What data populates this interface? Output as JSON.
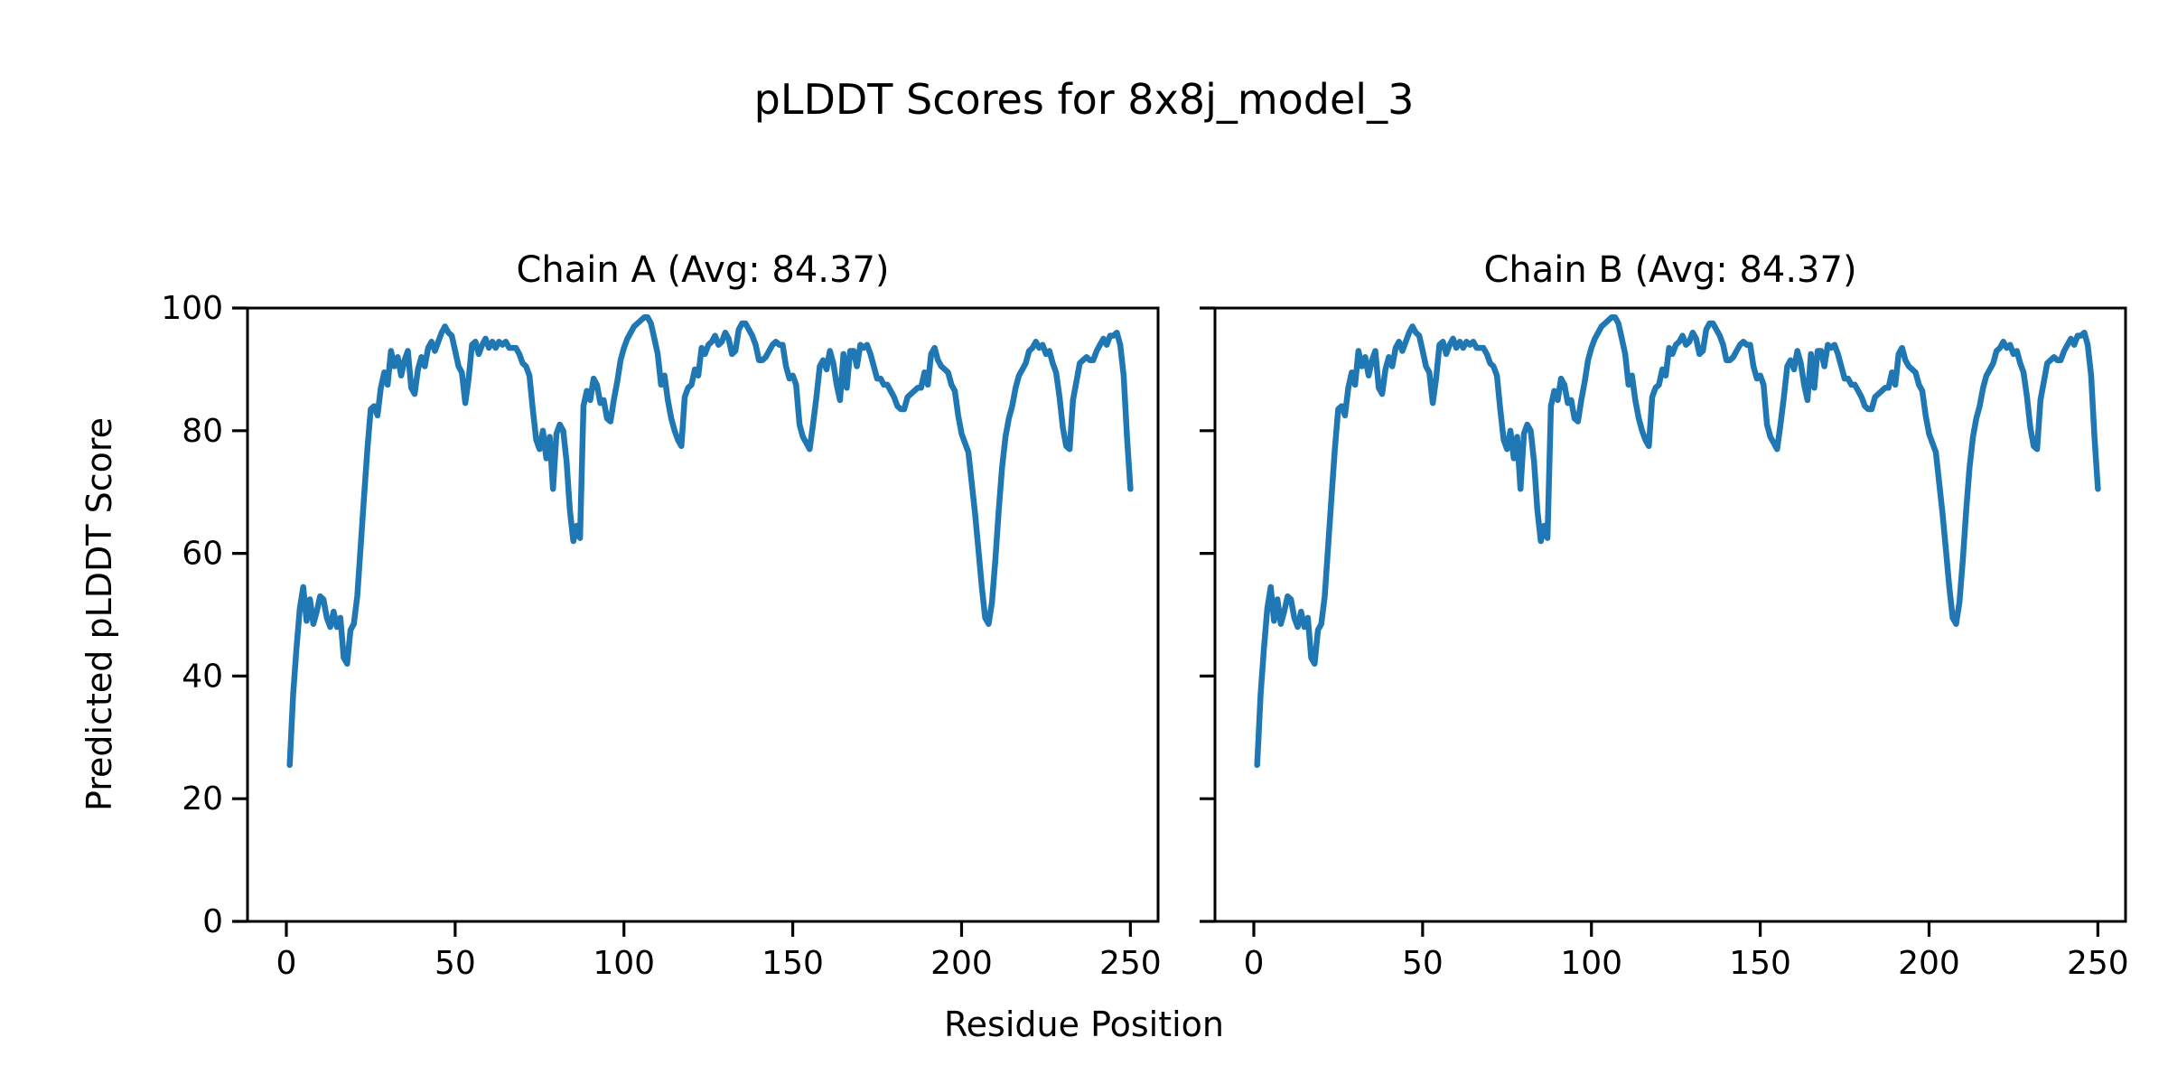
{
  "figure": {
    "suptitle": "pLDDT Scores for 8x8j_model_3",
    "background_color": "#ffffff",
    "text_color": "#000000"
  },
  "chart_data": {
    "type": "line",
    "legend": "none",
    "grid": false,
    "shared": {
      "xlabel": "Residue Position",
      "ylabel": "Predicted pLDDT Score",
      "xlim": [
        -11.5,
        258.2
      ],
      "ylim": [
        0,
        100
      ],
      "xticks": [
        0,
        50,
        100,
        150,
        200,
        250
      ],
      "yticks": [
        0,
        20,
        40,
        60,
        80,
        100
      ],
      "line_color": "#1f77b4",
      "axis_color": "#000000",
      "x_start": 1,
      "x_step": 1,
      "values": [
        25.5,
        37,
        44.5,
        51,
        54.5,
        49,
        52.5,
        48.5,
        50.5,
        53,
        52.5,
        49.5,
        48,
        50.5,
        48,
        49.5,
        43,
        42,
        47.5,
        48.5,
        53,
        61,
        69,
        77,
        83.5,
        84,
        82.5,
        87,
        89.5,
        87.5,
        93,
        90.5,
        92,
        89,
        91.5,
        93,
        87,
        86,
        90,
        92,
        90.5,
        93.5,
        94.5,
        93,
        94.5,
        96,
        97,
        96,
        95.5,
        93,
        90.5,
        89.5,
        84.5,
        88.5,
        94,
        94.5,
        92.5,
        94,
        95,
        93.5,
        94.5,
        93.5,
        94.5,
        94,
        94.5,
        93.5,
        93.5,
        93.5,
        92.5,
        91,
        90.5,
        89,
        83.5,
        78.5,
        77,
        80,
        75.5,
        79,
        70.5,
        79.5,
        81,
        80,
        75,
        67,
        62,
        64.5,
        62.5,
        84,
        86.5,
        85,
        88.5,
        87.5,
        84.5,
        85,
        82,
        81.5,
        85,
        88,
        91.5,
        93.5,
        95,
        96,
        97,
        97.5,
        98,
        98.5,
        98.5,
        97.5,
        95,
        92.5,
        87.5,
        89,
        85,
        82,
        80,
        78.5,
        77.5,
        85.5,
        87,
        87.5,
        90,
        89,
        93.5,
        92.5,
        94,
        94.5,
        95.5,
        94,
        94.5,
        96,
        95,
        92.5,
        93,
        96.5,
        97.5,
        97.5,
        96.5,
        95.5,
        94,
        91.5,
        91.5,
        92,
        93,
        94,
        94.5,
        94,
        94,
        90.5,
        88.5,
        89,
        87.5,
        81,
        79,
        78,
        77,
        81,
        85.5,
        90.5,
        91.5,
        90,
        93,
        91,
        87.5,
        85,
        92.5,
        87,
        93,
        93,
        90.5,
        94,
        93.5,
        94,
        92.5,
        90.5,
        88.5,
        88.5,
        87.5,
        87.5,
        86.5,
        85.5,
        84,
        83.5,
        83.5,
        85.5,
        86,
        86.5,
        87,
        87,
        89.5,
        87.5,
        92.5,
        93.5,
        91.5,
        90.5,
        90,
        89.5,
        87.5,
        86.5,
        82.5,
        79.5,
        78,
        76.5,
        71.5,
        66.5,
        60.5,
        54.5,
        49.5,
        48.5,
        52,
        59,
        67,
        74,
        79,
        82,
        84,
        87,
        89,
        90,
        91,
        93,
        93.5,
        94.5,
        93.5,
        94,
        92.5,
        93,
        91,
        89.5,
        85.5,
        80.5,
        77.5,
        77,
        85,
        88,
        91,
        91.5,
        92,
        91.5,
        91.5,
        93,
        94,
        95,
        94,
        95.5,
        95.5,
        96,
        94,
        89,
        79,
        70.5
      ]
    },
    "subplots": [
      {
        "chain": "A",
        "title": "Chain A (Avg: 84.37)",
        "avg": 84.37
      },
      {
        "chain": "B",
        "title": "Chain B (Avg: 84.37)",
        "avg": 84.37
      }
    ]
  }
}
